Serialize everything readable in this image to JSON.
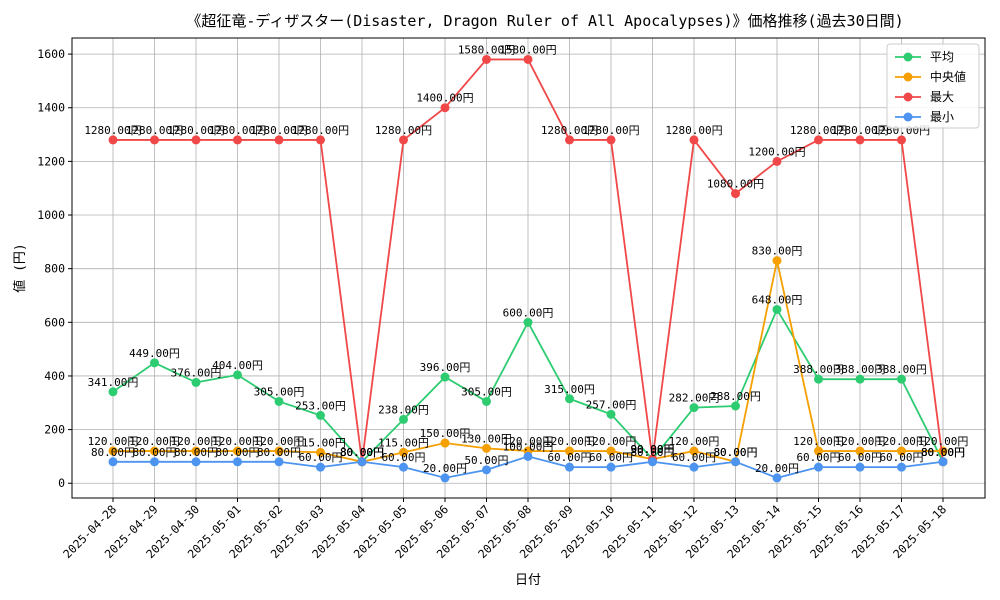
{
  "chart_data": {
    "type": "line",
    "title": "《超征竜-ディザスター(Disaster, Dragon Ruler of All Apocalypses)》価格推移(過去30日間)",
    "xlabel": "日付",
    "ylabel": "値 (円)",
    "ylim": [
      -55,
      1660
    ],
    "yticks": [
      0,
      200,
      400,
      600,
      800,
      1000,
      1200,
      1400,
      1600
    ],
    "grid": true,
    "legend_position": "top-right",
    "label_suffix": "円",
    "categories": [
      "2025-04-28",
      "2025-04-29",
      "2025-04-30",
      "2025-05-01",
      "2025-05-02",
      "2025-05-03",
      "2025-05-04",
      "2025-05-05",
      "2025-05-06",
      "2025-05-07",
      "2025-05-08",
      "2025-05-09",
      "2025-05-10",
      "2025-05-11",
      "2025-05-12",
      "2025-05-13",
      "2025-05-14",
      "2025-05-15",
      "2025-05-16",
      "2025-05-17",
      "2025-05-18"
    ],
    "series": [
      {
        "name": "平均",
        "color": "#2ecc71",
        "values": [
          341,
          449,
          376,
          404,
          305,
          253,
          80,
          238,
          396,
          305,
          600,
          315,
          257,
          90,
          282,
          288,
          648,
          388,
          388,
          388,
          80
        ]
      },
      {
        "name": "中央値",
        "color": "#f5a000",
        "values": [
          120,
          120,
          120,
          120,
          120,
          115,
          80,
          115,
          150,
          130,
          120,
          120,
          120,
          90,
          120,
          80,
          830,
          120,
          120,
          120,
          120
        ]
      },
      {
        "name": "最大",
        "color": "#f04848",
        "values": [
          1280,
          1280,
          1280,
          1280,
          1280,
          1280,
          80,
          1280,
          1400,
          1580,
          1580,
          1280,
          1280,
          90,
          1280,
          1080,
          1200,
          1280,
          1280,
          1280,
          80
        ]
      },
      {
        "name": "最小",
        "color": "#4c94f0",
        "values": [
          80,
          80,
          80,
          80,
          80,
          60,
          80,
          60,
          20,
          50,
          100,
          60,
          60,
          80,
          60,
          80,
          20,
          60,
          60,
          60,
          80
        ]
      }
    ]
  }
}
